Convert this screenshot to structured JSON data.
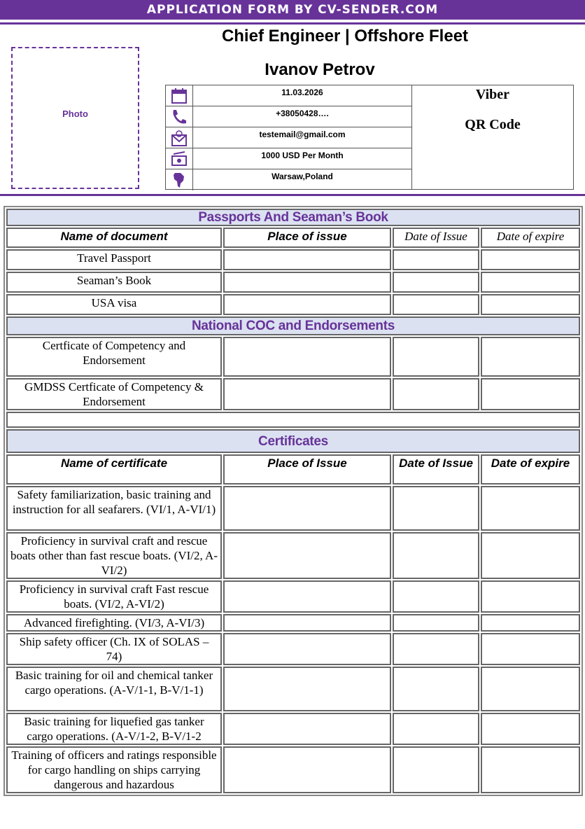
{
  "banner": "APPLICATION FORM BY CV-SENDER.COM",
  "header": {
    "title": "Chief Engineer | Offshore Fleet",
    "name": "Ivanov Petrov",
    "photo_label": "Photo"
  },
  "contact": [
    {
      "icon": "calendar-icon",
      "value": "11.03.2026"
    },
    {
      "icon": "phone-icon",
      "value": "+38050428…."
    },
    {
      "icon": "email-icon",
      "value": "testemail@gmail.com"
    },
    {
      "icon": "money-icon",
      "value": "1000 USD Per Month"
    },
    {
      "icon": "globe-icon",
      "value": "Warsaw,Poland"
    }
  ],
  "qr": {
    "line1": "Viber",
    "line2": "QR Code"
  },
  "colors": {
    "accent": "#673399",
    "section_bg": "#dbe1f1"
  },
  "passports": {
    "title": "Passports And Seaman’s Book",
    "headers": [
      "Name of document",
      "Place of issue",
      "Date of Issue",
      "Date of expire"
    ],
    "rows": [
      "Travel Passport",
      "Seaman’s Book",
      "USA visa"
    ]
  },
  "coc": {
    "title": "National COC and Endorsements",
    "rows": [
      "Certficate of  Competency and Endorsement",
      "GMDSS Certficate of   Competency & Endorsement"
    ]
  },
  "certificates": {
    "title": "Certificates",
    "headers": [
      "Name of certificate",
      "Place of Issue",
      "Date of Issue",
      "Date of expire"
    ],
    "rows": [
      "Safety familiarization, basic training and instruction for all seafarers. (VI/1, A-VI/1)",
      "Proficiency in survival craft and rescue boats other than fast rescue boats. (VI/2, A-VI/2)",
      "Proficiency in survival craft Fast rescue boats. (VI/2, A-VI/2)",
      "Advanced firefighting. (VI/3, A-VI/3)",
      "Ship safety officer (Ch. IX of SOLAS – 74)",
      "Basic training for oil and chemical tanker cargo operations. (A-V/1-1, B-V/1-1)",
      "Basic training for liquefied gas tanker cargo operations. (A-V/1-2, B-V/1-2",
      "Training of officers and ratings responsible for cargo handling on ships carrying dangerous and hazardous"
    ]
  }
}
